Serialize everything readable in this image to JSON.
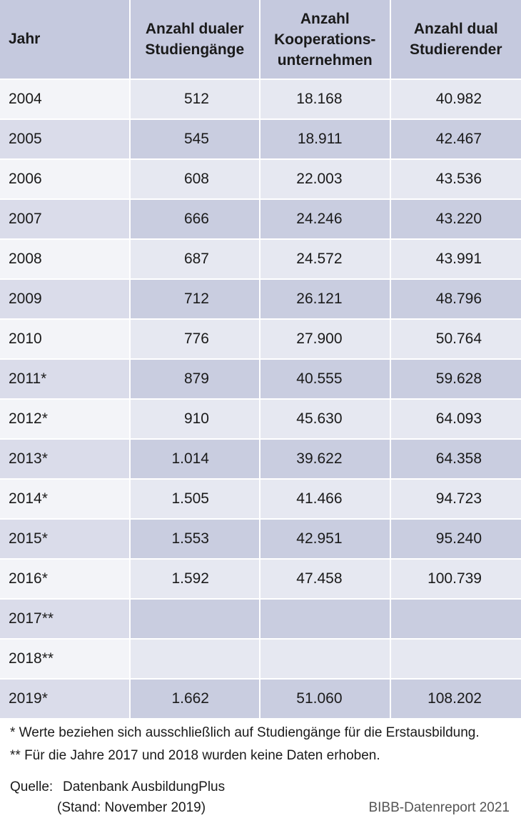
{
  "table": {
    "header": [
      "Jahr",
      "Anzahl dualer\nStudiengänge",
      "Anzahl\nKooperations-\nunternehmen",
      "Anzahl dual\nStudierender"
    ],
    "rows": [
      [
        "2004",
        "512",
        "18.168",
        "40.982"
      ],
      [
        "2005",
        "545",
        "18.911",
        "42.467"
      ],
      [
        "2006",
        "608",
        "22.003",
        "43.536"
      ],
      [
        "2007",
        "666",
        "24.246",
        "43.220"
      ],
      [
        "2008",
        "687",
        "24.572",
        "43.991"
      ],
      [
        "2009",
        "712",
        "26.121",
        "48.796"
      ],
      [
        "2010",
        "776",
        "27.900",
        "50.764"
      ],
      [
        "2011*",
        "879",
        "40.555",
        "59.628"
      ],
      [
        "2012*",
        "910",
        "45.630",
        "64.093"
      ],
      [
        "2013*",
        "1.014",
        "39.622",
        "64.358"
      ],
      [
        "2014*",
        "1.505",
        "41.466",
        "94.723"
      ],
      [
        "2015*",
        "1.553",
        "42.951",
        "95.240"
      ],
      [
        "2016*",
        "1.592",
        "47.458",
        "100.739"
      ],
      [
        "2017**",
        null,
        null,
        null
      ],
      [
        "2018**",
        null,
        null,
        null
      ],
      [
        "2019*",
        "1.662",
        "51.060",
        "108.202"
      ]
    ]
  },
  "notes": [
    "* Werte beziehen sich ausschließlich auf Studiengänge für die Erstausbildung.",
    "** Für die Jahre 2017 und 2018 wurden keine Daten erhoben."
  ],
  "source": {
    "label": "Quelle:",
    "lines": [
      "Datenbank AusbildungPlus",
      "(Stand: November 2019)"
    ]
  },
  "credit": "BIBB-Datenreport 2021"
}
